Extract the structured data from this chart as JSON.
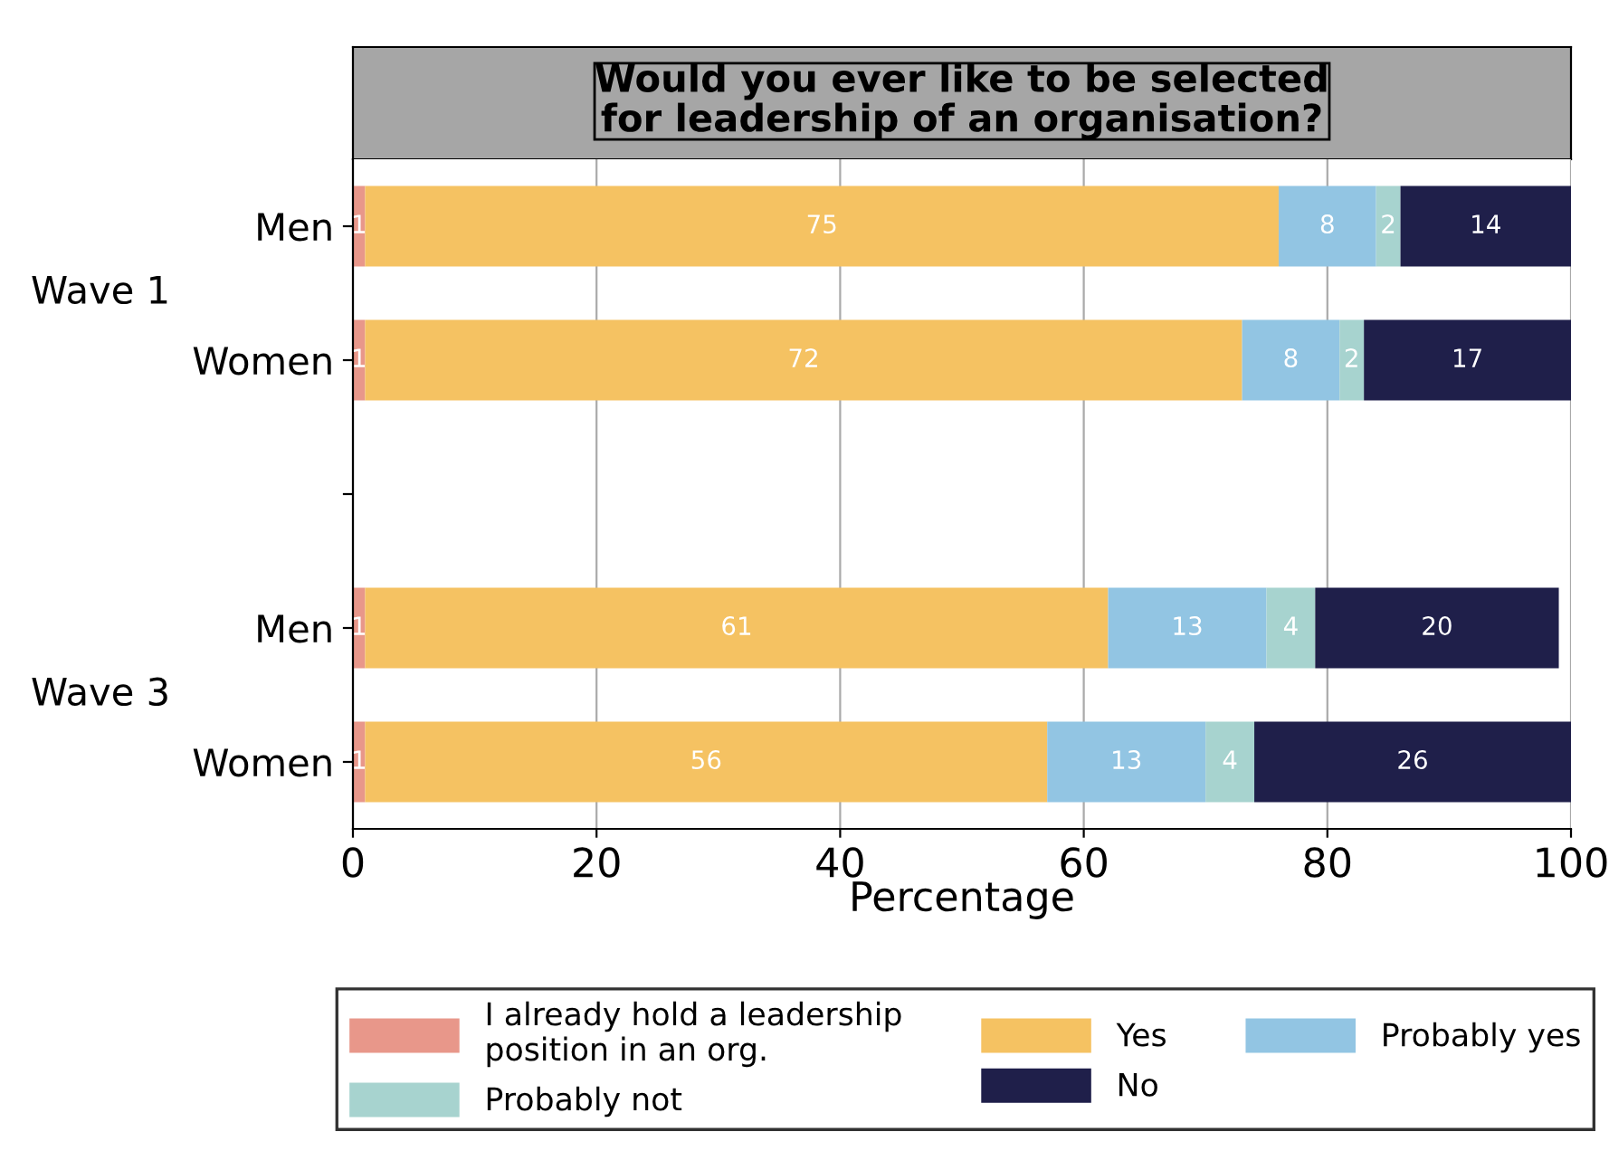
{
  "chart_data": {
    "type": "bar",
    "orientation": "horizontal",
    "stacked": true,
    "title": "Would you ever like to be selected\nfor leadership of an organisation?",
    "xlabel": "Percentage",
    "categories": [
      "Men",
      "Women",
      null,
      "Men",
      "Women"
    ],
    "annotations": [
      "Wave 1",
      "Wave 3"
    ],
    "series": [
      {
        "name": "I already hold a leadership\nposition in an org.",
        "color": "#e8978a",
        "values": [
          1,
          1,
          null,
          1,
          1
        ]
      },
      {
        "name": "Yes",
        "color": "#f5c262",
        "values": [
          75,
          72,
          null,
          61,
          56
        ]
      },
      {
        "name": "Probably yes",
        "color": "#92c5e3",
        "values": [
          8,
          8,
          null,
          13,
          13
        ]
      },
      {
        "name": "Probably not",
        "color": "#a7d3cf",
        "values": [
          2,
          2,
          null,
          4,
          4
        ]
      },
      {
        "name": "No",
        "color": "#1f1f4a",
        "values": [
          14,
          17,
          null,
          20,
          26
        ]
      }
    ],
    "data_labels": true,
    "xlim": [
      0,
      100
    ],
    "xticks": [
      0,
      20,
      40,
      60,
      80,
      100
    ],
    "grid": "x",
    "legend": "bottom"
  }
}
